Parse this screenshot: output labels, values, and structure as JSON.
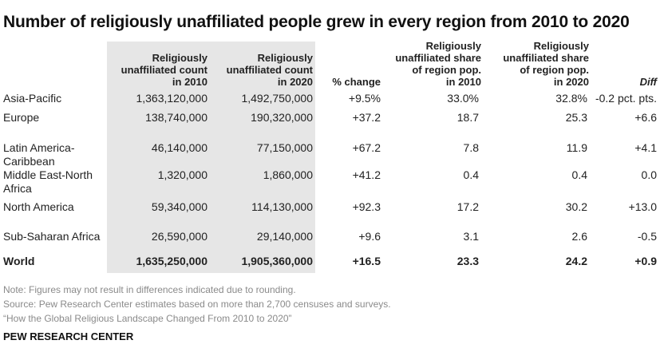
{
  "title": "Number of religiously unaffiliated people grew in every region from 2010 to 2020",
  "headers": {
    "count2010": "Religiously\nunaffiliated count\nin 2010",
    "count2020": "Religiously\nunaffiliated count\nin 2020",
    "change": "% change",
    "share2010": "Religiously\nunaffiliated share\nof region pop.\nin 2010",
    "share2020": "Religiously\nunaffiliated share\nof region pop.\nin 2020",
    "diff": "Diff"
  },
  "rows": [
    {
      "region": "Asia-Pacific",
      "count2010": "1,363,120,000",
      "count2020": "1,492,750,000",
      "change": "+9.5%",
      "share2010": "33.0%",
      "share2020": "32.8%",
      "diff": "-0.2 pct. pts."
    },
    {
      "region": "Europe",
      "count2010": "138,740,000",
      "count2020": "190,320,000",
      "change": "+37.2",
      "share2010": "18.7",
      "share2020": "25.3",
      "diff": "+6.6"
    },
    {
      "region": "Latin America-Caribbean",
      "count2010": "46,140,000",
      "count2020": "77,150,000",
      "change": "+67.2",
      "share2010": "7.8",
      "share2020": "11.9",
      "diff": "+4.1"
    },
    {
      "region": "Middle East-North Africa",
      "count2010": "1,320,000",
      "count2020": "1,860,000",
      "change": "+41.2",
      "share2010": "0.4",
      "share2020": "0.4",
      "diff": "0.0"
    },
    {
      "region": "North America",
      "count2010": "59,340,000",
      "count2020": "114,130,000",
      "change": "+92.3",
      "share2010": "17.2",
      "share2020": "30.2",
      "diff": "+13.0"
    },
    {
      "region": "Sub-Saharan Africa",
      "count2010": "26,590,000",
      "count2020": "29,140,000",
      "change": "+9.6",
      "share2010": "3.1",
      "share2020": "2.6",
      "diff": "-0.5"
    },
    {
      "region": "World",
      "count2010": "1,635,250,000",
      "count2020": "1,905,360,000",
      "change": "+16.5",
      "share2010": "23.3",
      "share2020": "24.2",
      "diff": "+0.9"
    }
  ],
  "notes": {
    "note": "Note: Figures may not result in differences indicated due to rounding.",
    "source": "Source: Pew Research Center estimates based on more than 2,700 censuses and surveys.",
    "report": "“How the Global Religious Landscape Changed From 2010 to 2020”"
  },
  "brand": "PEW RESEARCH CENTER"
}
